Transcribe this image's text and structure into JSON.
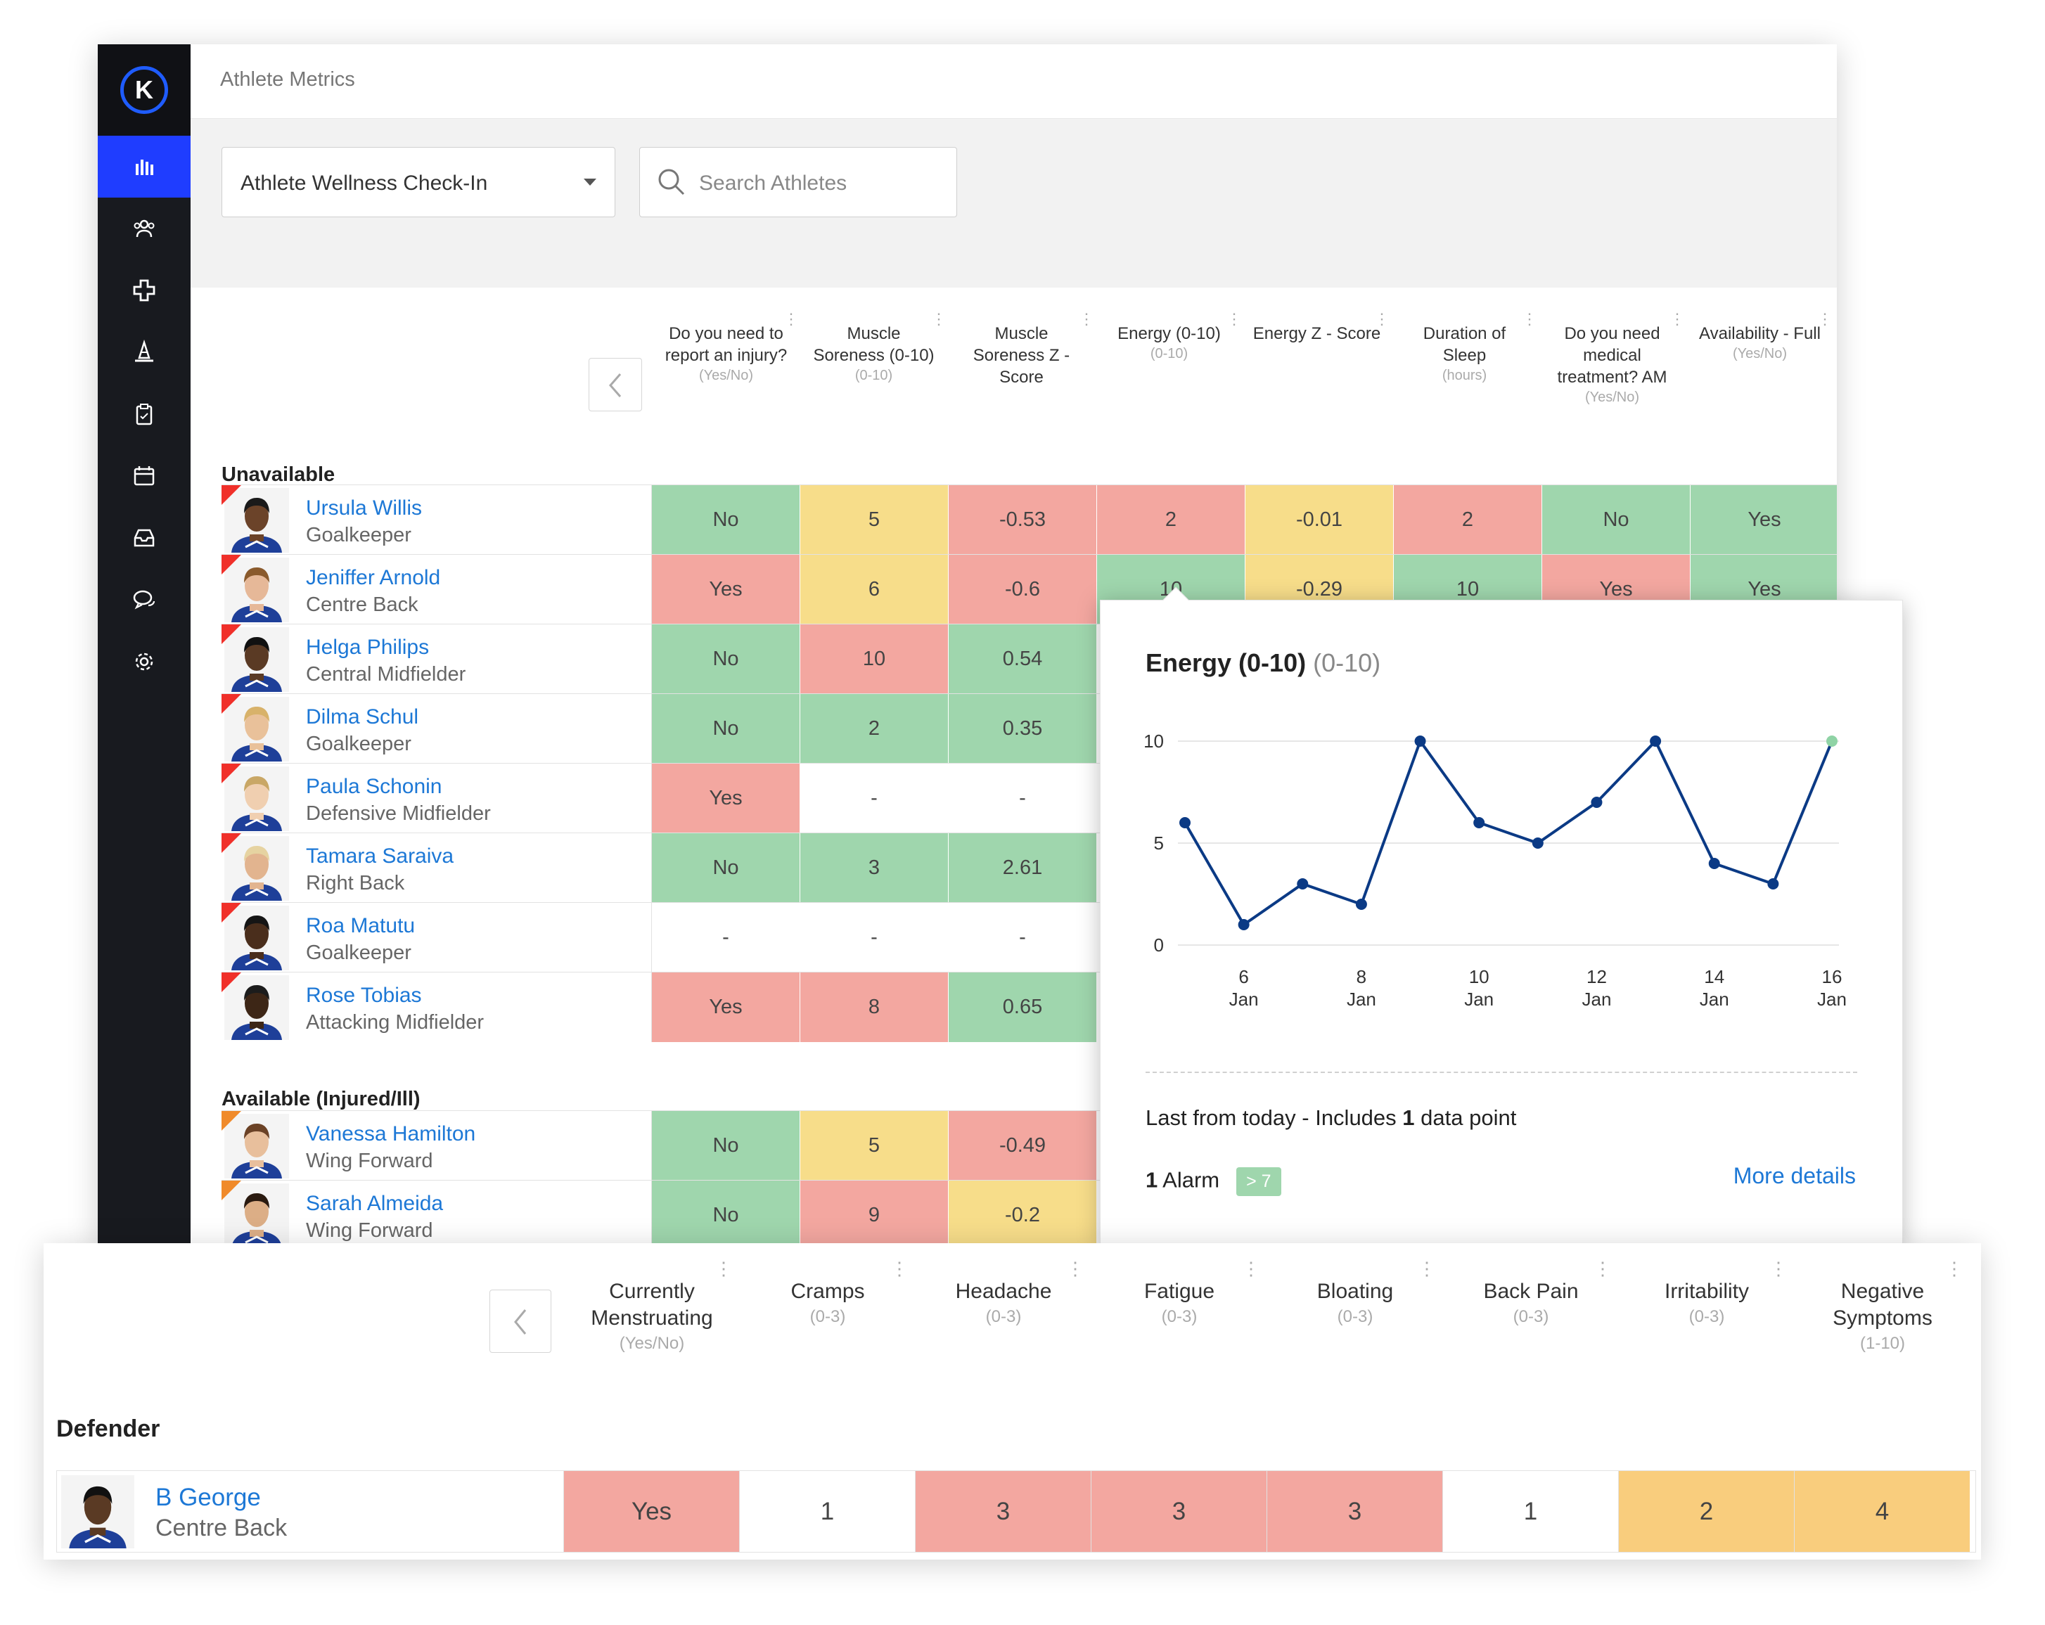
{
  "app": {
    "title": "Athlete Metrics"
  },
  "sidebar": {
    "items": [
      {
        "icon": "bar-chart-icon",
        "active": true
      },
      {
        "icon": "people-icon"
      },
      {
        "icon": "medical-cross-icon"
      },
      {
        "icon": "training-cone-icon"
      },
      {
        "icon": "clipboard-icon"
      },
      {
        "icon": "calendar-icon"
      },
      {
        "icon": "inbox-icon"
      },
      {
        "icon": "chat-icon"
      },
      {
        "icon": "settings-gear-icon"
      }
    ]
  },
  "filters": {
    "form_select": "Athlete Wellness Check-In",
    "search_placeholder": "Search Athletes"
  },
  "table": {
    "columns": [
      {
        "label": "Do you need to report an injury?",
        "unit": "(Yes/No)"
      },
      {
        "label": "Muscle Soreness (0-10)",
        "unit": "(0-10)"
      },
      {
        "label": "Muscle Soreness Z - Score",
        "unit": ""
      },
      {
        "label": "Energy (0-10)",
        "unit": "(0-10)"
      },
      {
        "label": "Energy Z - Score",
        "unit": ""
      },
      {
        "label": "Duration of Sleep",
        "unit": "(hours)"
      },
      {
        "label": "Do you need medical treatment? AM",
        "unit": "(Yes/No)"
      },
      {
        "label": "Availability - Full",
        "unit": "(Yes/No)"
      }
    ],
    "sections": [
      {
        "title": "Unavailable"
      },
      {
        "title": "Available (Injured/Ill)"
      }
    ],
    "rows": [
      {
        "name": "Ursula Willis",
        "position": "Goalkeeper",
        "cells": [
          "No",
          "5",
          "-0.53",
          "2",
          "-0.01",
          "2",
          "No",
          "Yes"
        ],
        "colors": [
          "g",
          "y",
          "r",
          "r",
          "y",
          "r",
          "g",
          "g"
        ]
      },
      {
        "name": "Jeniffer Arnold",
        "position": "Centre Back",
        "cells": [
          "Yes",
          "6",
          "-0.6",
          "10",
          "-0.29",
          "10",
          "Yes",
          "Yes"
        ],
        "colors": [
          "r",
          "y",
          "r",
          "g",
          "y",
          "g",
          "r",
          "g"
        ]
      },
      {
        "name": "Helga Philips",
        "position": "Central Midfielder",
        "cells": [
          "No",
          "10",
          "0.54"
        ],
        "colors": [
          "g",
          "r",
          "g"
        ]
      },
      {
        "name": "Dilma Schul",
        "position": "Goalkeeper",
        "cells": [
          "No",
          "2",
          "0.35"
        ],
        "colors": [
          "g",
          "g",
          "g"
        ]
      },
      {
        "name": "Paula Schonin",
        "position": "Defensive Midfielder",
        "cells": [
          "Yes",
          "-",
          "-"
        ],
        "colors": [
          "r",
          "w",
          "w"
        ]
      },
      {
        "name": "Tamara Saraiva",
        "position": "Right Back",
        "cells": [
          "No",
          "3",
          "2.61"
        ],
        "colors": [
          "g",
          "g",
          "g"
        ]
      },
      {
        "name": "Roa Matutu",
        "position": "Goalkeeper",
        "cells": [
          "-",
          "-",
          "-"
        ],
        "colors": [
          "w",
          "w",
          "w"
        ]
      },
      {
        "name": "Rose Tobias",
        "position": "Attacking Midfielder",
        "cells": [
          "Yes",
          "8",
          "0.65"
        ],
        "colors": [
          "r",
          "r",
          "g"
        ]
      },
      {
        "name": "Vanessa Hamilton",
        "position": "Wing Forward",
        "cells": [
          "No",
          "5",
          "-0.49"
        ],
        "colors": [
          "g",
          "y",
          "r"
        ]
      },
      {
        "name": "Sarah Almeida",
        "position": "Wing Forward",
        "cells": [
          "No",
          "9",
          "-0.2"
        ],
        "colors": [
          "g",
          "r",
          "y"
        ]
      }
    ]
  },
  "popup": {
    "title": "Energy (0-10)",
    "unit": "(0-10)",
    "summary_prefix": "Last from today - Includes ",
    "summary_count": "1",
    "summary_suffix": " data point",
    "alarm_count": "1",
    "alarm_label": " Alarm",
    "alarm_badge": "> 7",
    "more_details": "More details"
  },
  "chart_data": {
    "type": "line",
    "title": "Energy (0-10)",
    "x": [
      "5 Jan",
      "6 Jan",
      "7 Jan",
      "8 Jan",
      "9 Jan",
      "10 Jan",
      "11 Jan",
      "12 Jan",
      "13 Jan",
      "14 Jan",
      "15 Jan",
      "16 Jan"
    ],
    "xticks": [
      "6 Jan",
      "8 Jan",
      "10 Jan",
      "12 Jan",
      "14 Jan",
      "16 Jan"
    ],
    "values": [
      6,
      1,
      3,
      2,
      10,
      6,
      5,
      7,
      10,
      4,
      3,
      10
    ],
    "yticks": [
      0,
      5,
      10
    ],
    "ylim": [
      0,
      10
    ],
    "grid": true,
    "colors": {
      "line": "#0b3a85",
      "last_point": "#8fd3a5"
    }
  },
  "bottom": {
    "columns": [
      {
        "label": "Currently Menstruating",
        "unit": "(Yes/No)"
      },
      {
        "label": "Cramps",
        "unit": "(0-3)"
      },
      {
        "label": "Headache",
        "unit": "(0-3)"
      },
      {
        "label": "Fatigue",
        "unit": "(0-3)"
      },
      {
        "label": "Bloating",
        "unit": "(0-3)"
      },
      {
        "label": "Back Pain",
        "unit": "(0-3)"
      },
      {
        "label": "Irritability",
        "unit": "(0-3)"
      },
      {
        "label": "Negative Symptoms",
        "unit": "(1-10)"
      }
    ],
    "section": "Defender",
    "row": {
      "name": "B George",
      "position": "Centre Back",
      "cells": [
        "Yes",
        "1",
        "3",
        "3",
        "3",
        "1",
        "2",
        "4"
      ],
      "colors": [
        "r",
        "w",
        "r",
        "r",
        "r",
        "w",
        "o",
        "o"
      ]
    }
  }
}
